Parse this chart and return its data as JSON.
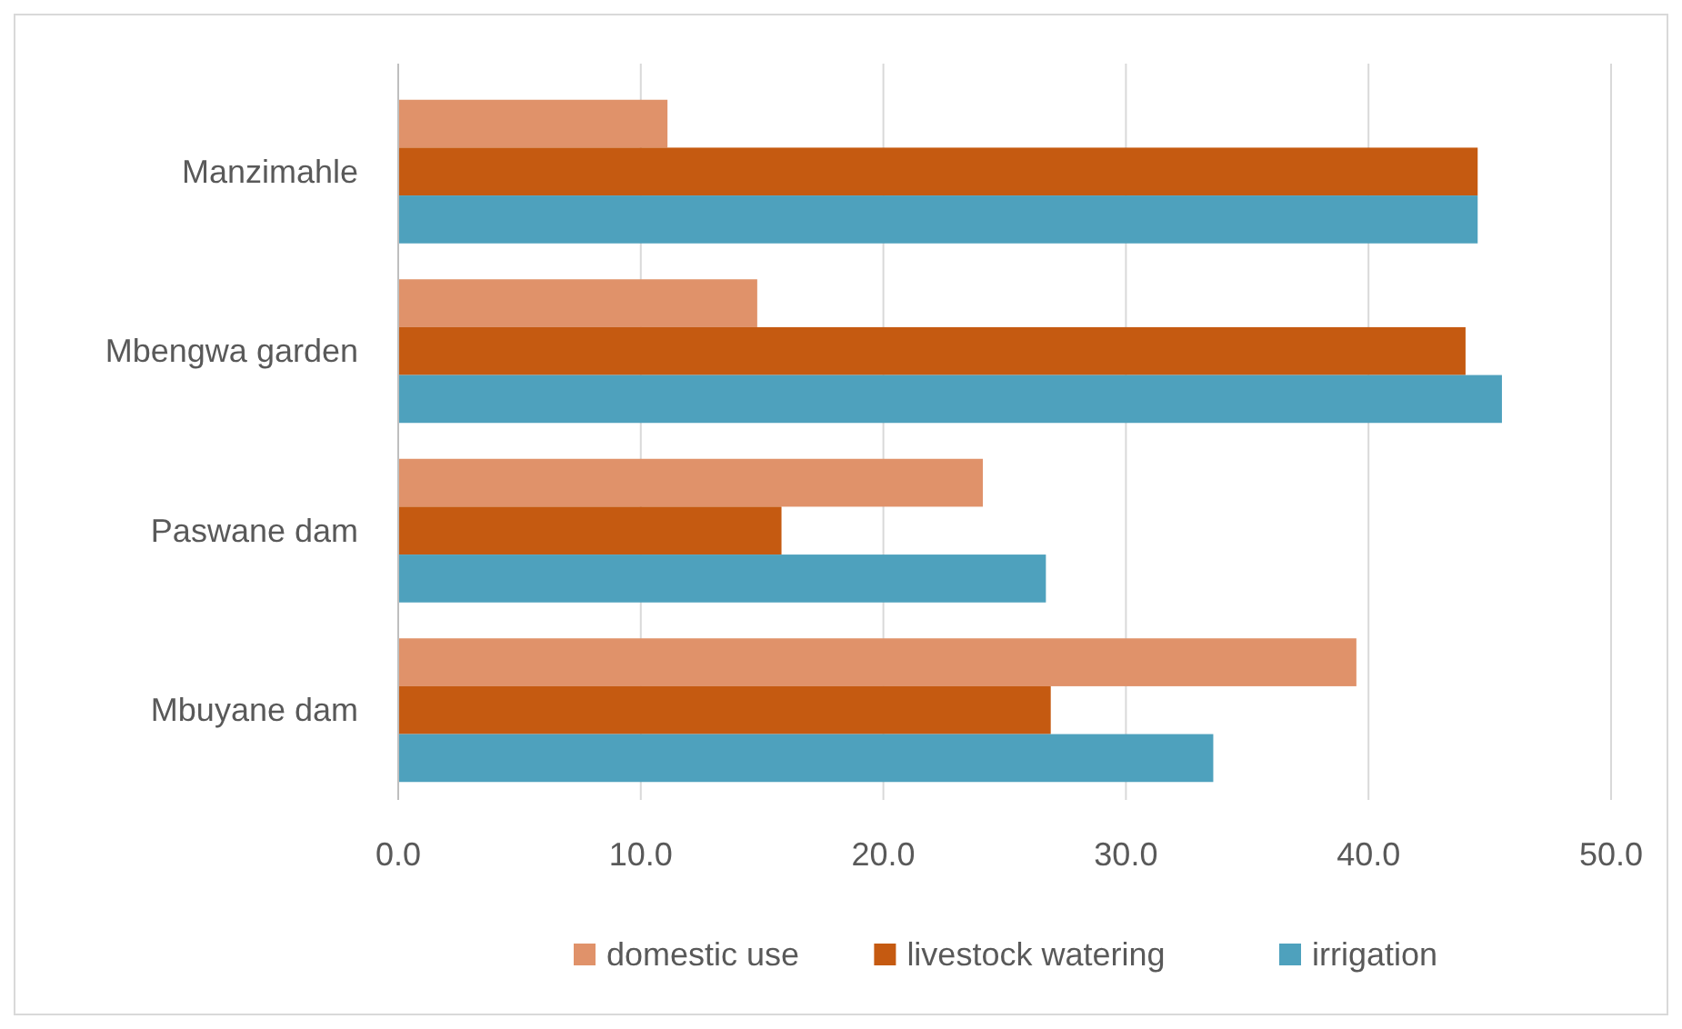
{
  "chart_data": {
    "type": "bar",
    "orientation": "horizontal",
    "categories": [
      "Manzimahle",
      "Mbengwa garden",
      "Paswane dam",
      "Mbuyane dam"
    ],
    "series": [
      {
        "name": "domestic use",
        "color": "#e0926a",
        "values": [
          11.1,
          14.8,
          24.1,
          39.5
        ]
      },
      {
        "name": "livestock watering",
        "color": "#c55a11",
        "values": [
          44.5,
          44.0,
          15.8,
          26.9
        ]
      },
      {
        "name": "irrigation",
        "color": "#4ea1bd",
        "values": [
          44.5,
          45.5,
          26.7,
          33.6
        ]
      }
    ],
    "xlim": [
      0,
      50
    ],
    "xticks": [
      {
        "value": 0,
        "label": "0.0"
      },
      {
        "value": 10,
        "label": "10.0"
      },
      {
        "value": 20,
        "label": "20.0"
      },
      {
        "value": 30,
        "label": "30.0"
      },
      {
        "value": 40,
        "label": "40.0"
      },
      {
        "value": 50,
        "label": "50.0"
      }
    ],
    "grid": "x",
    "legend": "bottom"
  }
}
